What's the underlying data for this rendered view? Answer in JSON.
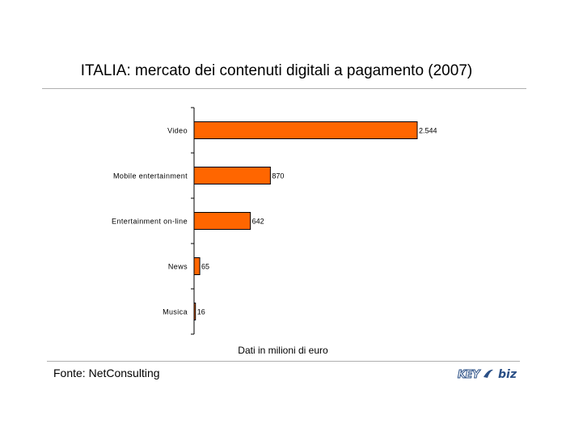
{
  "header": {
    "title": "ITALIA: mercato dei contenuti digitali a pagamento (2007)"
  },
  "chart_data": {
    "type": "bar",
    "orientation": "horizontal",
    "title": "ITALIA: mercato dei contenuti digitali a pagamento (2007)",
    "categories": [
      "Video",
      "Mobile entertainment",
      "Entertainment on-line",
      "News",
      "Musica"
    ],
    "values": [
      2544,
      870,
      642,
      65,
      16
    ],
    "value_labels": [
      "2.544",
      "870",
      "642",
      "65",
      "16"
    ],
    "xlabel": "",
    "ylabel": "",
    "xlim": [
      0,
      2544
    ],
    "grid": false,
    "legend": "none",
    "bar_color": "#ff6600",
    "bar_stroke": "#000000"
  },
  "footer": {
    "note": "Dati in milioni di euro",
    "source": "Fonte: NetConsulting",
    "logo_text_a": "KEY",
    "logo_text_b": "biz",
    "logo_color": "#2a4f86"
  }
}
